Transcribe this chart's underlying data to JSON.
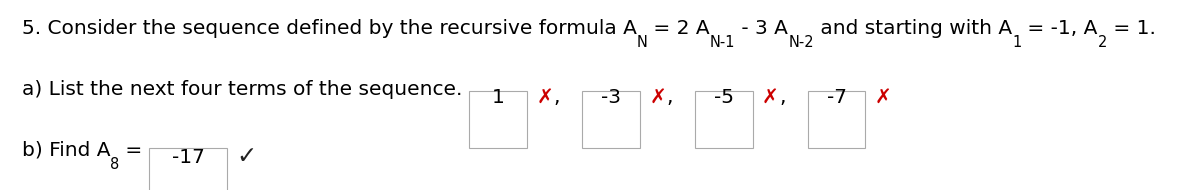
{
  "title_parts": [
    {
      "text": "5. Consider the sequence defined by the recursive formula A",
      "style": "normal"
    },
    {
      "text": "N",
      "style": "sub"
    },
    {
      "text": " = 2 A",
      "style": "normal"
    },
    {
      "text": "N-1",
      "style": "sub"
    },
    {
      "text": " - 3 A",
      "style": "normal"
    },
    {
      "text": "N-2",
      "style": "sub"
    },
    {
      "text": " and starting with A",
      "style": "normal"
    },
    {
      "text": "1",
      "style": "sub"
    },
    {
      "text": " = -1, A",
      "style": "normal"
    },
    {
      "text": "2",
      "style": "sub"
    },
    {
      "text": " = 1.",
      "style": "normal"
    }
  ],
  "part_a_label": "a) List the next four terms of the sequence.",
  "part_a_values": [
    "1",
    "-3",
    "-5",
    "-7"
  ],
  "part_b_value": "-17",
  "cross_color": "#cc0000",
  "check_color": "#222222",
  "text_color": "#000000",
  "bg_color": "#ffffff",
  "font_size": 14.5,
  "sub_font_size": 10.5
}
